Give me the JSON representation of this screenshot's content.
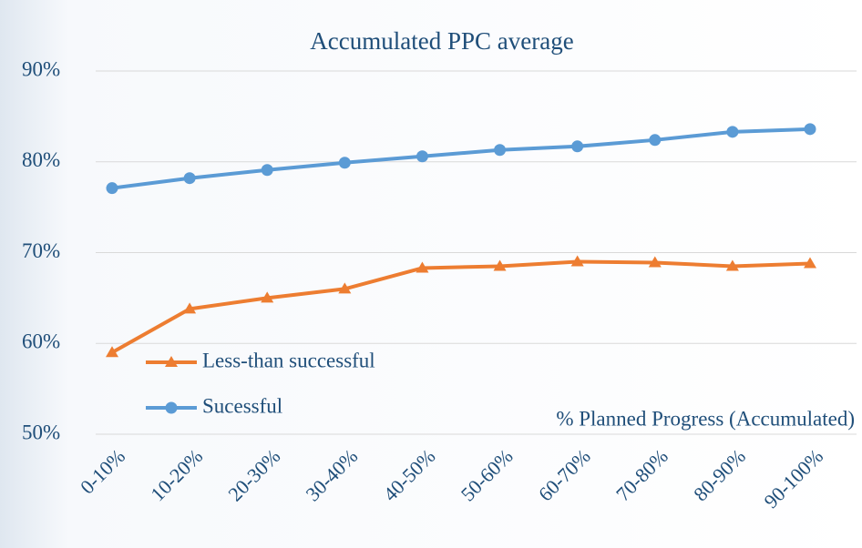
{
  "chart_data": {
    "type": "line",
    "title": "Accumulated PPC average",
    "x_label": "% Planned Progress (Accumulated)",
    "categories": [
      "0-10%",
      "10-20%",
      "20-30%",
      "30-40%",
      "40-50%",
      "50-60%",
      "60-70%",
      "70-80%",
      "80-90%",
      "90-100%"
    ],
    "series": [
      {
        "name": "Less-than successful",
        "color": "#ed7d31",
        "marker": "triangle",
        "values": [
          59.0,
          63.8,
          65.0,
          66.0,
          68.3,
          68.5,
          69.0,
          68.9,
          68.5,
          68.8
        ]
      },
      {
        "name": "Sucessful",
        "color": "#5b9bd5",
        "marker": "circle",
        "values": [
          77.1,
          78.2,
          79.1,
          79.9,
          80.6,
          81.3,
          81.7,
          82.4,
          83.3,
          83.6
        ]
      }
    ],
    "ylim": [
      50,
      90
    ],
    "yticks": [
      {
        "value": 50,
        "label": "50%"
      },
      {
        "value": 60,
        "label": "60%"
      },
      {
        "value": 70,
        "label": "70%"
      },
      {
        "value": 80,
        "label": "80%"
      },
      {
        "value": 90,
        "label": "90%"
      }
    ],
    "grid": true,
    "legend": "lower left"
  }
}
